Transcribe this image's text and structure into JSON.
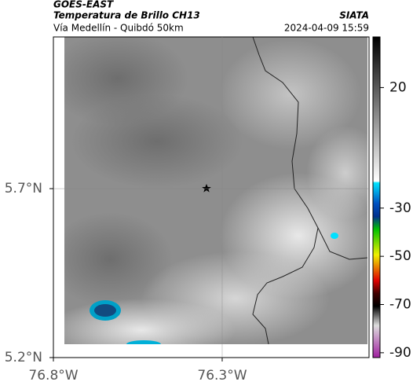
{
  "header": {
    "satellite": "GOES-EAST",
    "title": "Temperatura de Brillo CH13",
    "subtitle": "Vía Medellín - Quibdó 50km",
    "source": "SIATA",
    "datetime": "2024-04-09 15:59"
  },
  "map": {
    "xlim": [
      -76.8,
      -75.865
    ],
    "ylim": [
      5.2,
      6.149
    ],
    "xticks": [
      {
        "value": -76.8,
        "label": "76.8°W"
      },
      {
        "value": -76.3,
        "label": "76.3°W"
      }
    ],
    "yticks": [
      {
        "value": 5.2,
        "label": "5.2°N"
      },
      {
        "value": 5.7,
        "label": "5.7°N"
      }
    ],
    "grid": true
  },
  "colorbar": {
    "lim": [
      -92,
      41
    ],
    "ticks": [
      20,
      -30,
      -50,
      -70,
      -90
    ]
  }
}
